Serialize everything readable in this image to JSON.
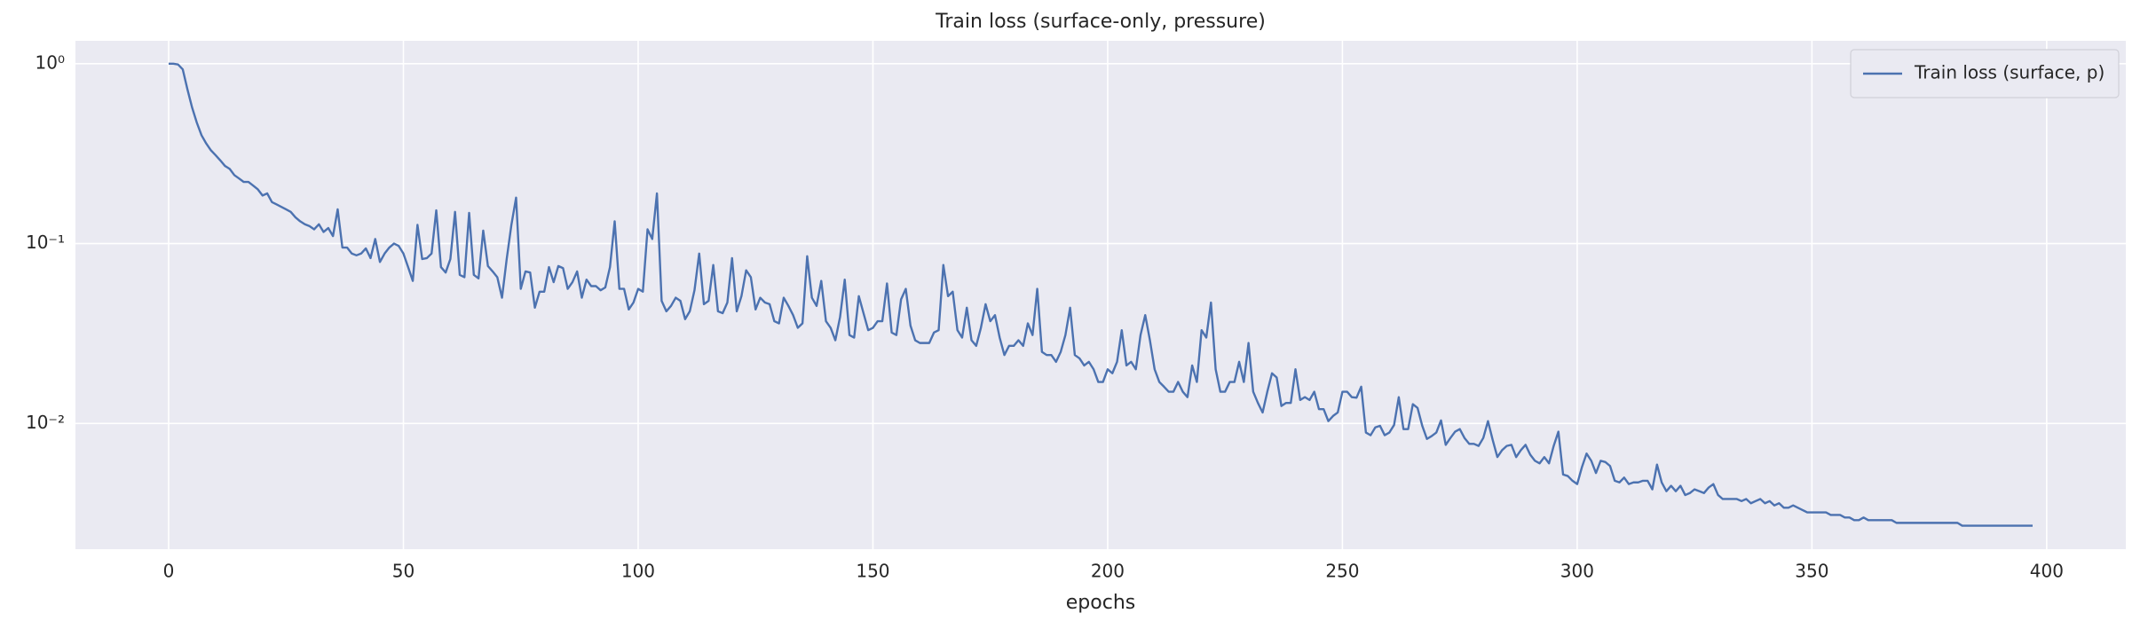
{
  "chart_data": {
    "type": "line",
    "title": "Train loss (surface-only, pressure)",
    "xlabel": "epochs",
    "x": [
      0,
      1,
      2,
      3,
      4,
      5,
      6,
      7,
      8,
      9,
      10,
      11,
      12,
      13,
      14,
      15,
      16,
      17,
      18,
      19,
      20,
      21,
      22,
      23,
      24,
      25,
      26,
      27,
      28,
      29,
      30,
      31,
      32,
      33,
      34,
      35,
      36,
      37,
      38,
      39,
      40,
      41,
      42,
      43,
      44,
      45,
      46,
      47,
      48,
      49,
      50,
      51,
      52,
      53,
      54,
      55,
      56,
      57,
      58,
      59,
      60,
      61,
      62,
      63,
      64,
      65,
      66,
      67,
      68,
      69,
      70,
      71,
      72,
      73,
      74,
      75,
      76,
      77,
      78,
      79,
      80,
      81,
      82,
      83,
      84,
      85,
      86,
      87,
      88,
      89,
      90,
      91,
      92,
      93,
      94,
      95,
      96,
      97,
      98,
      99,
      100,
      101,
      102,
      103,
      104,
      105,
      106,
      107,
      108,
      109,
      110,
      111,
      112,
      113,
      114,
      115,
      116,
      117,
      118,
      119,
      120,
      121,
      122,
      123,
      124,
      125,
      126,
      127,
      128,
      129,
      130,
      131,
      132,
      133,
      134,
      135,
      136,
      137,
      138,
      139,
      140,
      141,
      142,
      143,
      144,
      145,
      146,
      147,
      148,
      149,
      150,
      151,
      152,
      153,
      154,
      155,
      156,
      157,
      158,
      159,
      160,
      161,
      162,
      163,
      164,
      165,
      166,
      167,
      168,
      169,
      170,
      171,
      172,
      173,
      174,
      175,
      176,
      177,
      178,
      179,
      180,
      181,
      182,
      183,
      184,
      185,
      186,
      187,
      188,
      189,
      190,
      191,
      192,
      193,
      194,
      195,
      196,
      197,
      198,
      199,
      200,
      201,
      202,
      203,
      204,
      205,
      206,
      207,
      208,
      209,
      210,
      211,
      212,
      213,
      214,
      215,
      216,
      217,
      218,
      219,
      220,
      221,
      222,
      223,
      224,
      225,
      226,
      227,
      228,
      229,
      230,
      231,
      232,
      233,
      234,
      235,
      236,
      237,
      238,
      239,
      240,
      241,
      242,
      243,
      244,
      245,
      246,
      247,
      248,
      249,
      250,
      251,
      252,
      253,
      254,
      255,
      256,
      257,
      258,
      259,
      260,
      261,
      262,
      263,
      264,
      265,
      266,
      267,
      268,
      269,
      270,
      271,
      272,
      273,
      274,
      275,
      276,
      277,
      278,
      279,
      280,
      281,
      282,
      283,
      284,
      285,
      286,
      287,
      288,
      289,
      290,
      291,
      292,
      293,
      294,
      295,
      296,
      297,
      298,
      299,
      300,
      301,
      302,
      303,
      304,
      305,
      306,
      307,
      308,
      309,
      310,
      311,
      312,
      313,
      314,
      315,
      316,
      317,
      318,
      319,
      320,
      321,
      322,
      323,
      324,
      325,
      326,
      327,
      328,
      329,
      330,
      331,
      332,
      333,
      334,
      335,
      336,
      337,
      338,
      339,
      340,
      341,
      342,
      343,
      344,
      345,
      346,
      347,
      348,
      349,
      350,
      351,
      352,
      353,
      354,
      355,
      356,
      357,
      358,
      359,
      360,
      361,
      362,
      363,
      364,
      365,
      366,
      367,
      368,
      369,
      370,
      371,
      372,
      373,
      374,
      375,
      376,
      377,
      378,
      379,
      380,
      381,
      382,
      383,
      384,
      385,
      386,
      387,
      388,
      389,
      390,
      391,
      392,
      393,
      394,
      395,
      396,
      397
    ],
    "series": [
      {
        "name": "Train loss (surface, p)",
        "color": "#4c72b0",
        "values": [
          1.0,
          1.0,
          0.99,
          0.93,
          0.72,
          0.57,
          0.47,
          0.4,
          0.36,
          0.33,
          0.31,
          0.29,
          0.27,
          0.26,
          0.24,
          0.23,
          0.22,
          0.22,
          0.21,
          0.2,
          0.185,
          0.19,
          0.17,
          0.165,
          0.16,
          0.155,
          0.15,
          0.14,
          0.133,
          0.128,
          0.125,
          0.12,
          0.128,
          0.116,
          0.122,
          0.11,
          0.155,
          0.095,
          0.095,
          0.088,
          0.086,
          0.088,
          0.094,
          0.083,
          0.106,
          0.079,
          0.088,
          0.095,
          0.1,
          0.097,
          0.088,
          0.074,
          0.062,
          0.127,
          0.082,
          0.083,
          0.088,
          0.153,
          0.074,
          0.069,
          0.082,
          0.15,
          0.067,
          0.065,
          0.148,
          0.067,
          0.064,
          0.118,
          0.075,
          0.07,
          0.065,
          0.05,
          0.082,
          0.127,
          0.18,
          0.056,
          0.07,
          0.069,
          0.044,
          0.054,
          0.054,
          0.074,
          0.061,
          0.075,
          0.073,
          0.056,
          0.061,
          0.07,
          0.05,
          0.063,
          0.058,
          0.058,
          0.055,
          0.057,
          0.074,
          0.133,
          0.056,
          0.056,
          0.043,
          0.047,
          0.056,
          0.054,
          0.12,
          0.106,
          0.19,
          0.048,
          0.042,
          0.045,
          0.05,
          0.048,
          0.038,
          0.042,
          0.055,
          0.088,
          0.046,
          0.048,
          0.076,
          0.042,
          0.041,
          0.047,
          0.083,
          0.042,
          0.051,
          0.071,
          0.065,
          0.043,
          0.05,
          0.047,
          0.046,
          0.037,
          0.036,
          0.05,
          0.045,
          0.04,
          0.034,
          0.036,
          0.085,
          0.05,
          0.045,
          0.062,
          0.037,
          0.034,
          0.029,
          0.039,
          0.063,
          0.031,
          0.03,
          0.051,
          0.041,
          0.033,
          0.034,
          0.037,
          0.037,
          0.06,
          0.032,
          0.031,
          0.049,
          0.056,
          0.035,
          0.029,
          0.028,
          0.028,
          0.028,
          0.032,
          0.033,
          0.076,
          0.051,
          0.054,
          0.033,
          0.03,
          0.044,
          0.029,
          0.027,
          0.034,
          0.046,
          0.037,
          0.04,
          0.03,
          0.024,
          0.027,
          0.027,
          0.029,
          0.027,
          0.036,
          0.031,
          0.056,
          0.025,
          0.024,
          0.024,
          0.022,
          0.025,
          0.031,
          0.044,
          0.024,
          0.023,
          0.021,
          0.022,
          0.02,
          0.017,
          0.017,
          0.02,
          0.019,
          0.022,
          0.033,
          0.021,
          0.022,
          0.02,
          0.031,
          0.04,
          0.029,
          0.02,
          0.017,
          0.016,
          0.015,
          0.015,
          0.017,
          0.015,
          0.014,
          0.021,
          0.017,
          0.033,
          0.03,
          0.047,
          0.02,
          0.015,
          0.015,
          0.017,
          0.017,
          0.022,
          0.017,
          0.028,
          0.015,
          0.013,
          0.0115,
          0.015,
          0.019,
          0.018,
          0.0125,
          0.013,
          0.013,
          0.02,
          0.0135,
          0.014,
          0.0135,
          0.015,
          0.012,
          0.012,
          0.0103,
          0.011,
          0.0115,
          0.015,
          0.015,
          0.014,
          0.0139,
          0.016,
          0.0089,
          0.0086,
          0.0095,
          0.0097,
          0.0086,
          0.0089,
          0.0098,
          0.014,
          0.0093,
          0.0093,
          0.0128,
          0.0122,
          0.0097,
          0.0082,
          0.0085,
          0.0089,
          0.0104,
          0.0076,
          0.0083,
          0.009,
          0.0093,
          0.0083,
          0.0077,
          0.0077,
          0.0075,
          0.0083,
          0.0103,
          0.0081,
          0.0065,
          0.0071,
          0.0075,
          0.0076,
          0.0065,
          0.0071,
          0.0076,
          0.0067,
          0.0062,
          0.006,
          0.0065,
          0.006,
          0.0075,
          0.009,
          0.0052,
          0.0051,
          0.0048,
          0.0046,
          0.0057,
          0.0068,
          0.0062,
          0.0053,
          0.0062,
          0.0061,
          0.0058,
          0.0048,
          0.0047,
          0.005,
          0.0046,
          0.0047,
          0.0047,
          0.0048,
          0.0048,
          0.0043,
          0.0059,
          0.0047,
          0.0042,
          0.0045,
          0.0042,
          0.0045,
          0.004,
          0.0041,
          0.0043,
          0.0042,
          0.0041,
          0.0044,
          0.0046,
          0.004,
          0.0038,
          0.0038,
          0.0038,
          0.0038,
          0.0037,
          0.0038,
          0.0036,
          0.0037,
          0.0038,
          0.0036,
          0.0037,
          0.0035,
          0.0036,
          0.0034,
          0.0034,
          0.0035,
          0.0034,
          0.0033,
          0.0032,
          0.0032,
          0.0032,
          0.0032,
          0.0032,
          0.0031,
          0.0031,
          0.0031,
          0.003,
          0.003,
          0.0029,
          0.0029,
          0.003,
          0.0029,
          0.0029,
          0.0029,
          0.0029,
          0.0029,
          0.0029,
          0.0028,
          0.0028,
          0.0028,
          0.0028,
          0.0028,
          0.0028,
          0.0028,
          0.0028,
          0.0028,
          0.0028,
          0.0028,
          0.0028,
          0.0028,
          0.0028,
          0.0027,
          0.0027,
          0.0027,
          0.0027,
          0.0027,
          0.0027,
          0.0027,
          0.0027,
          0.0027,
          0.0027,
          0.0027,
          0.0027,
          0.0027,
          0.0027,
          0.0027,
          0.0027
        ]
      }
    ],
    "xlim": [
      -19.85,
      416.85
    ],
    "xticks": [
      0,
      50,
      100,
      150,
      200,
      250,
      300,
      350,
      400
    ],
    "ylim": [
      0.002,
      1.34
    ],
    "y_scale": "log",
    "yticks": [
      {
        "value": 1,
        "label": "10⁰"
      },
      {
        "value": 0.1,
        "label": "10⁻¹"
      },
      {
        "value": 0.01,
        "label": "10⁻²"
      }
    ],
    "grid": true,
    "legend": "upper right"
  }
}
